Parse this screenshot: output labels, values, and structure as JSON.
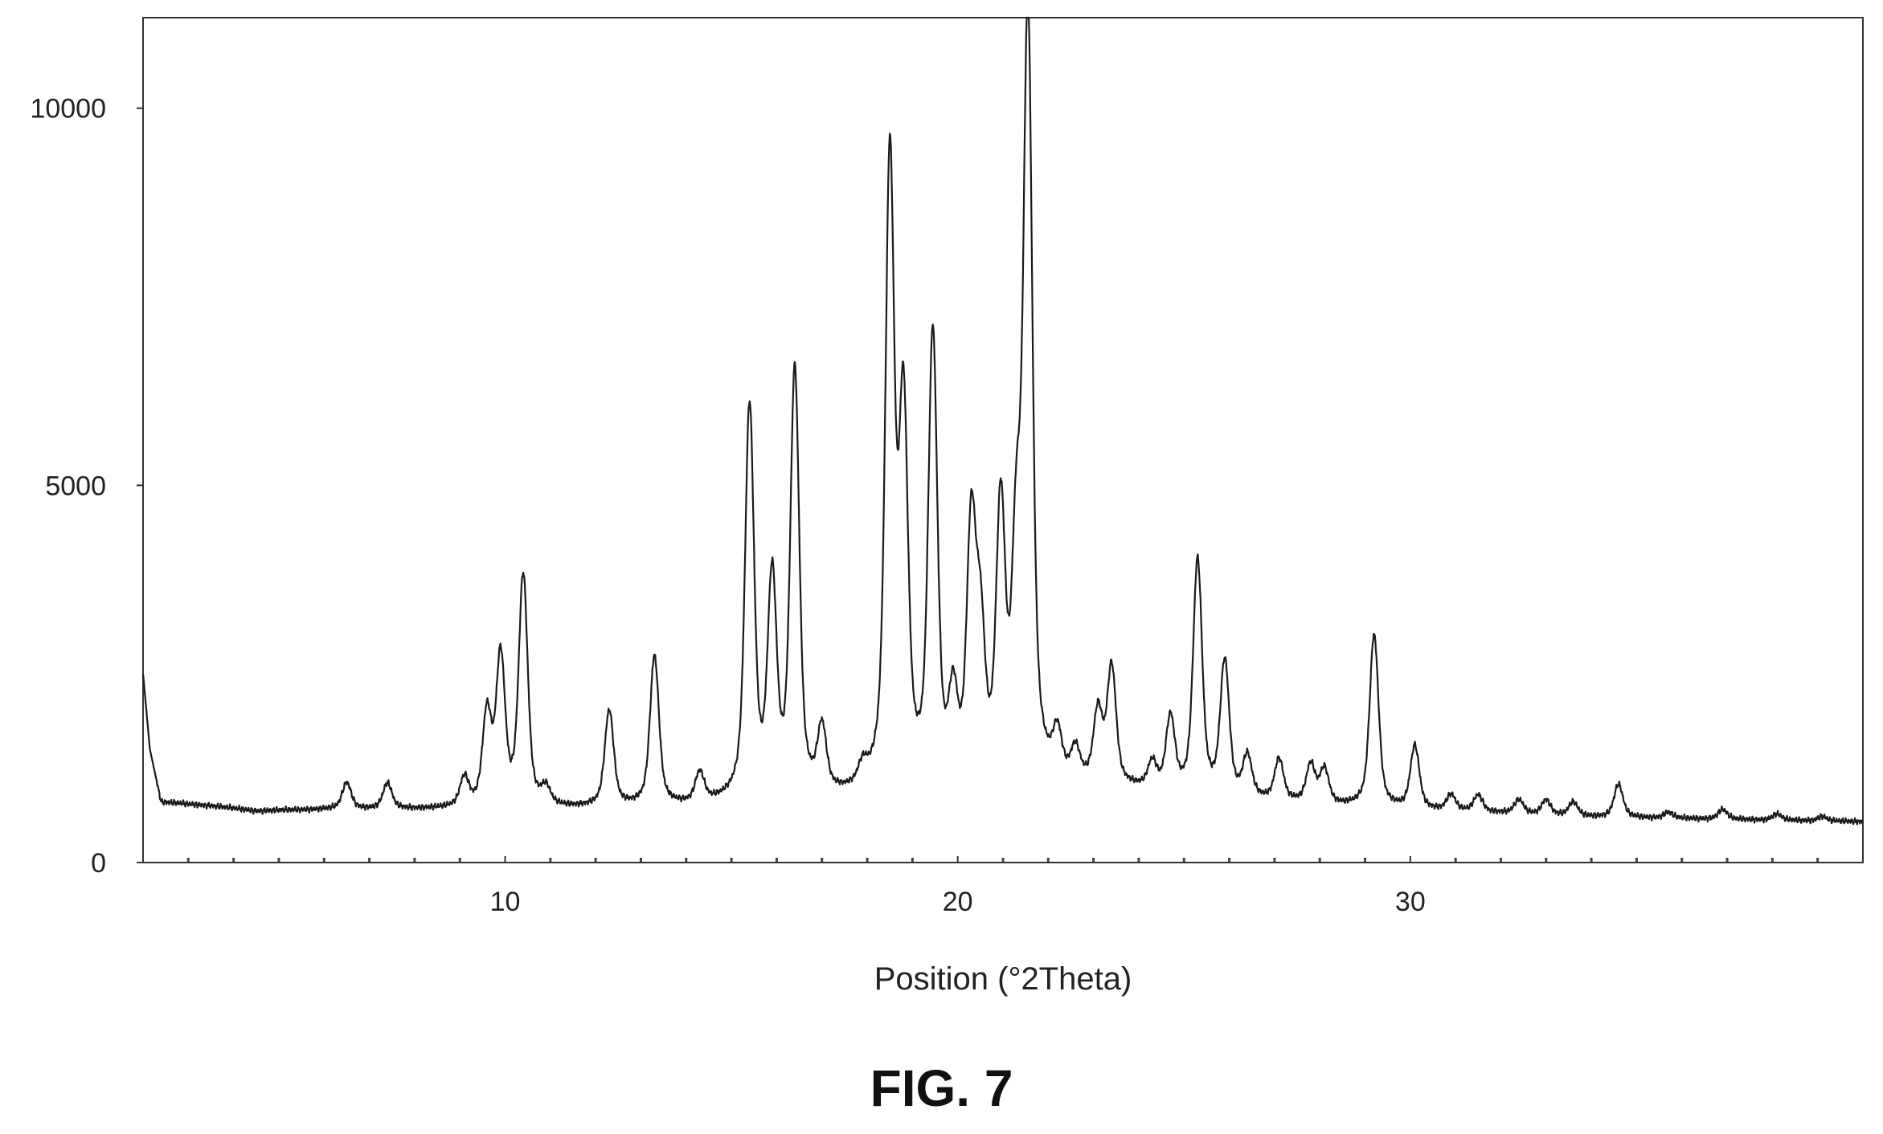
{
  "figure_label": "FIG. 7",
  "chart_data": {
    "type": "line",
    "title": "",
    "xlabel": "Position (°2Theta)",
    "ylabel": "",
    "xlim": [
      2,
      40
    ],
    "ylim": [
      0,
      11200
    ],
    "x_ticks": [
      10,
      20,
      30
    ],
    "y_ticks": [
      0,
      5000,
      10000
    ],
    "minor_x_tick_step": 1,
    "grid": false,
    "line_color": "#1a1a1a",
    "baseline": [
      [
        2.0,
        2500
      ],
      [
        2.15,
        1500
      ],
      [
        2.4,
        800
      ],
      [
        3.5,
        750
      ],
      [
        4.5,
        680
      ],
      [
        6.0,
        700
      ],
      [
        8.5,
        700
      ],
      [
        10.8,
        700
      ],
      [
        12.0,
        710
      ],
      [
        14.0,
        730
      ],
      [
        15.0,
        760
      ],
      [
        16.0,
        790
      ],
      [
        17.5,
        830
      ],
      [
        18.4,
        870
      ],
      [
        20.0,
        900
      ],
      [
        21.5,
        1000
      ],
      [
        22.5,
        990
      ],
      [
        23.5,
        960
      ],
      [
        24.5,
        900
      ],
      [
        25.5,
        850
      ],
      [
        26.5,
        810
      ],
      [
        27.5,
        770
      ],
      [
        28.5,
        730
      ],
      [
        29.5,
        700
      ],
      [
        30.3,
        680
      ],
      [
        31.0,
        670
      ],
      [
        32.0,
        650
      ],
      [
        33.0,
        620
      ],
      [
        34.0,
        600
      ],
      [
        35.0,
        590
      ],
      [
        36.0,
        580
      ],
      [
        37.0,
        570
      ],
      [
        38.0,
        560
      ],
      [
        39.0,
        550
      ],
      [
        40.0,
        540
      ]
    ],
    "peaks": [
      {
        "x": 6.5,
        "y": 1050
      },
      {
        "x": 7.4,
        "y": 1040
      },
      {
        "x": 9.1,
        "y": 1080
      },
      {
        "x": 9.6,
        "y": 1900
      },
      {
        "x": 9.9,
        "y": 2650
      },
      {
        "x": 10.4,
        "y": 3750
      },
      {
        "x": 10.9,
        "y": 920
      },
      {
        "x": 12.3,
        "y": 1980
      },
      {
        "x": 13.3,
        "y": 2700
      },
      {
        "x": 14.3,
        "y": 1130
      },
      {
        "x": 15.4,
        "y": 5950
      },
      {
        "x": 15.9,
        "y": 3600
      },
      {
        "x": 16.4,
        "y": 6400
      },
      {
        "x": 17.0,
        "y": 1650
      },
      {
        "x": 17.9,
        "y": 1080
      },
      {
        "x": 18.5,
        "y": 9100
      },
      {
        "x": 18.8,
        "y": 5700
      },
      {
        "x": 19.45,
        "y": 6800
      },
      {
        "x": 19.9,
        "y": 1950
      },
      {
        "x": 20.3,
        "y": 4200
      },
      {
        "x": 20.5,
        "y": 2800
      },
      {
        "x": 20.95,
        "y": 4450
      },
      {
        "x": 21.3,
        "y": 3800
      },
      {
        "x": 21.55,
        "y": 11000
      },
      {
        "x": 22.2,
        "y": 1550
      },
      {
        "x": 22.6,
        "y": 1380
      },
      {
        "x": 23.1,
        "y": 1900
      },
      {
        "x": 23.4,
        "y": 2500
      },
      {
        "x": 24.3,
        "y": 1250
      },
      {
        "x": 24.7,
        "y": 1850
      },
      {
        "x": 25.3,
        "y": 3950
      },
      {
        "x": 25.9,
        "y": 2600
      },
      {
        "x": 26.4,
        "y": 1350
      },
      {
        "x": 27.1,
        "y": 1330
      },
      {
        "x": 27.8,
        "y": 1260
      },
      {
        "x": 28.1,
        "y": 1200
      },
      {
        "x": 29.2,
        "y": 3000
      },
      {
        "x": 30.1,
        "y": 1520
      },
      {
        "x": 30.9,
        "y": 880
      },
      {
        "x": 31.5,
        "y": 880
      },
      {
        "x": 32.4,
        "y": 820
      },
      {
        "x": 33.0,
        "y": 820
      },
      {
        "x": 33.6,
        "y": 790
      },
      {
        "x": 34.6,
        "y": 1030
      },
      {
        "x": 35.7,
        "y": 660
      },
      {
        "x": 36.9,
        "y": 700
      },
      {
        "x": 38.1,
        "y": 640
      },
      {
        "x": 39.1,
        "y": 610
      }
    ]
  }
}
